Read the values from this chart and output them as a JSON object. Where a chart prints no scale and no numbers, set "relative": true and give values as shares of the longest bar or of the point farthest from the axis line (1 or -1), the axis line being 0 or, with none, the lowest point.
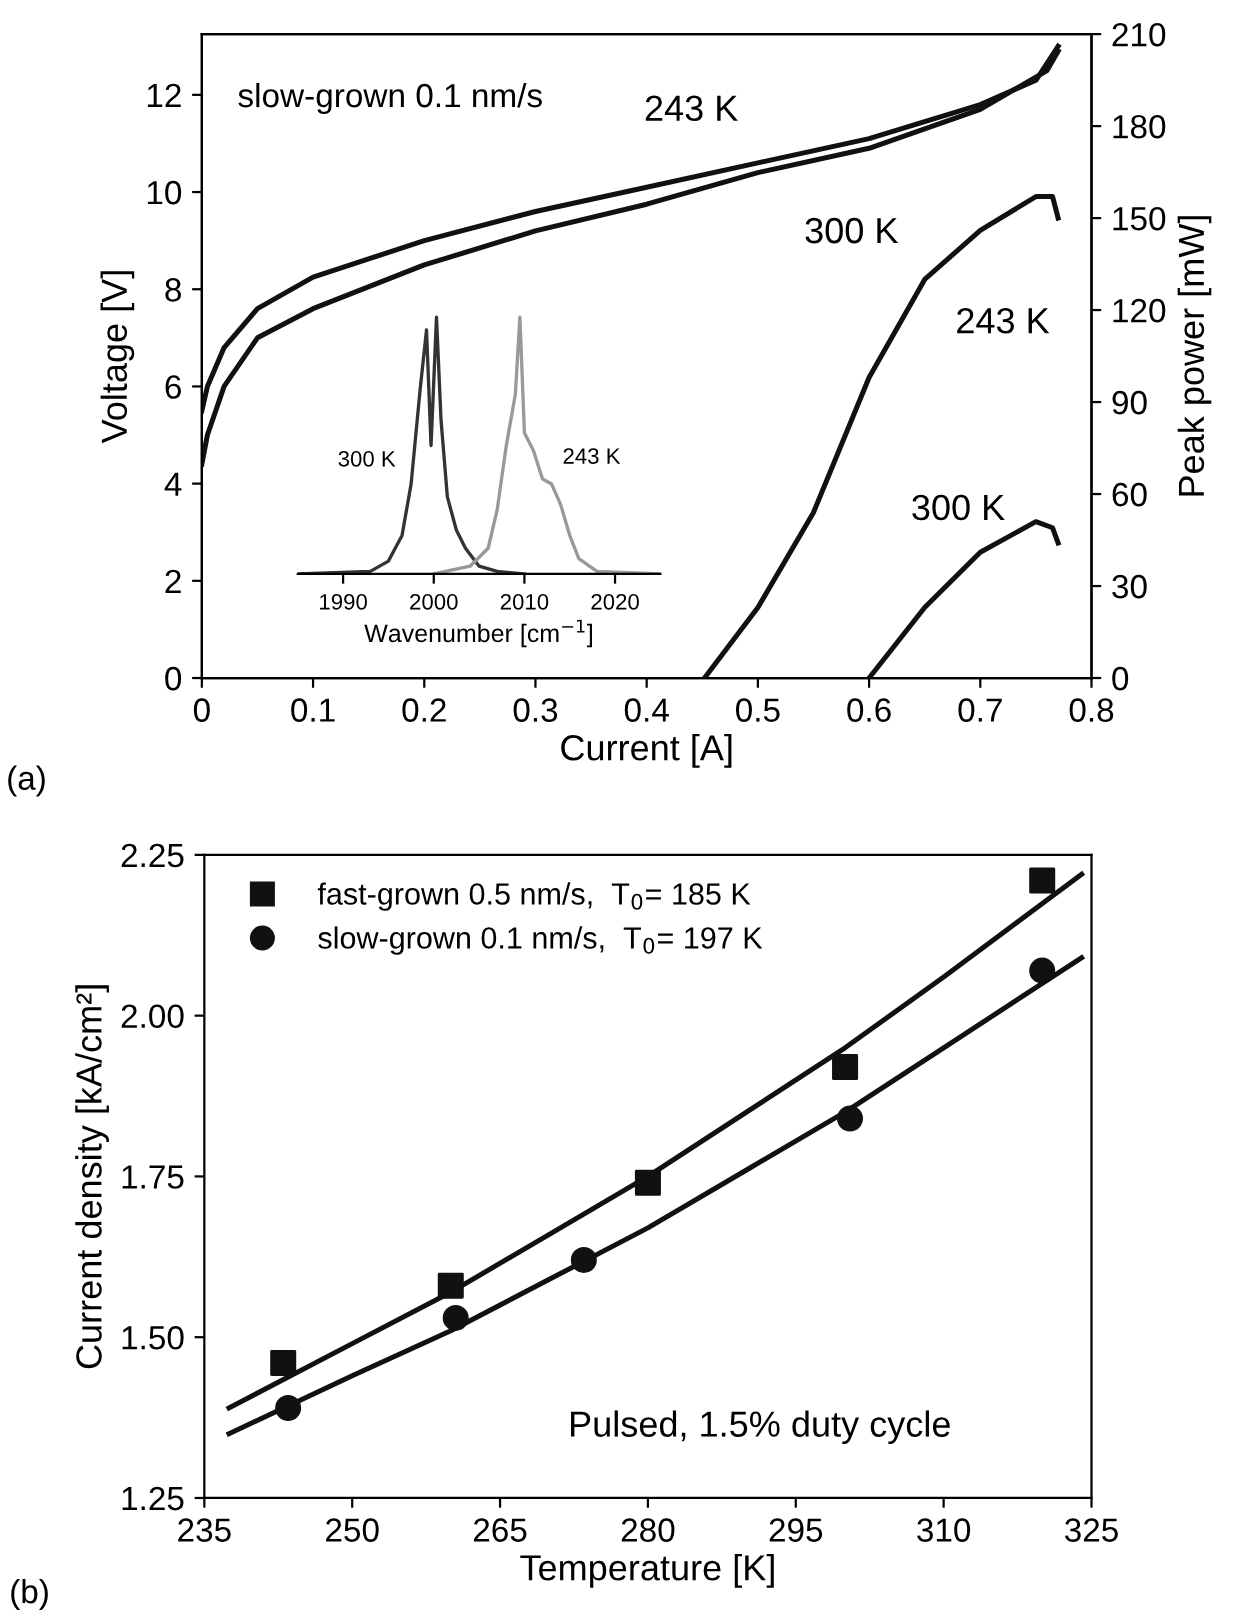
{
  "chart_data": [
    {
      "type": "line",
      "xlabel": "Current [A]",
      "ylabel": "Voltage [V]",
      "y2label": "Peak power [mW]",
      "xlim": [
        0,
        0.8
      ],
      "xticks": [
        0,
        0.1,
        0.2,
        0.3,
        0.4,
        0.5,
        0.6,
        0.7,
        0.8
      ],
      "ylim": [
        0,
        13.25
      ],
      "yticks": [
        0,
        2,
        4,
        6,
        8,
        10,
        12
      ],
      "y2lim": [
        0,
        210
      ],
      "y2ticks": [
        0,
        30,
        60,
        90,
        120,
        150,
        180,
        210
      ],
      "grid": false,
      "legend": false,
      "marker": "none",
      "line_style": "solid",
      "series": [
        {
          "name": "243 K",
          "color": "#111111",
          "x": [
            0,
            0.005,
            0.02,
            0.05,
            0.1,
            0.2,
            0.3,
            0.4,
            0.5,
            0.6,
            0.7,
            0.75,
            0.77
          ],
          "values": [
            5.5,
            6.0,
            6.8,
            7.6,
            8.25,
            9.0,
            9.6,
            10.1,
            10.6,
            11.1,
            11.8,
            12.3,
            13.0
          ]
        },
        {
          "name": "300 K",
          "color": "#111111",
          "x": [
            0,
            0.005,
            0.02,
            0.05,
            0.1,
            0.2,
            0.3,
            0.4,
            0.5,
            0.6,
            0.7,
            0.76,
            0.77
          ],
          "values": [
            4.4,
            5.0,
            6.0,
            7.0,
            7.6,
            8.5,
            9.2,
            9.75,
            10.4,
            10.9,
            11.7,
            12.5,
            12.9
          ]
        },
        {
          "name": "243 K",
          "color": "#111111",
          "axis": "y2",
          "x": [
            0.452,
            0.5,
            0.55,
            0.6,
            0.65,
            0.7,
            0.75,
            0.765,
            0.77
          ],
          "values": [
            0,
            23,
            54,
            98,
            130,
            146,
            157,
            157,
            150
          ]
        },
        {
          "name": "300 K",
          "color": "#111111",
          "axis": "y2",
          "x": [
            0.6,
            0.65,
            0.7,
            0.75,
            0.765,
            0.77
          ],
          "values": [
            0,
            23,
            41,
            51,
            49,
            44
          ]
        }
      ],
      "annotations": [
        "slow-grown 0.1 nm/s",
        "(a)"
      ]
    },
    {
      "type": "line",
      "relative": true,
      "xlabel": "Wavenumber [cm$^{−1}$]",
      "xlim": [
        1985,
        2025
      ],
      "xticks": [
        1990,
        2000,
        2010,
        2020
      ],
      "tick_labels": "x",
      "grid": false,
      "legend": false,
      "series": [
        {
          "name": "300 K",
          "color": "#333333",
          "x": [
            1985,
            1993,
            1995,
            1996.5,
            1997.5,
            1998.5,
            1999.2,
            1999.7,
            2000.3,
            2000.8,
            2001.5,
            2002.5,
            2003.5,
            2005,
            2007,
            2010
          ],
          "values": [
            0,
            0.01,
            0.05,
            0.15,
            0.35,
            0.72,
            0.95,
            0.5,
            1.0,
            0.6,
            0.3,
            0.17,
            0.1,
            0.03,
            0.01,
            0
          ]
        },
        {
          "name": "243 K",
          "color": "#999999",
          "x": [
            2000,
            2004,
            2006,
            2007,
            2008,
            2009,
            2009.5,
            2010,
            2011,
            2012,
            2013,
            2014,
            2015,
            2016,
            2018,
            2025
          ],
          "values": [
            0,
            0.03,
            0.1,
            0.25,
            0.5,
            0.7,
            1.0,
            0.55,
            0.48,
            0.37,
            0.35,
            0.27,
            0.15,
            0.06,
            0.01,
            0
          ]
        }
      ]
    },
    {
      "type": "scatter",
      "xlabel": "Temperature [K]",
      "ylabel": "Current density [kA/cm²]",
      "xlim": [
        235,
        325
      ],
      "xticks": [
        235,
        250,
        265,
        280,
        295,
        310,
        325
      ],
      "ylim": [
        1.25,
        2.25
      ],
      "yticks": [
        1.25,
        {
          "value": 1.5,
          "label": "1.50"
        },
        1.75,
        {
          "value": 2.0,
          "label": "2.00"
        },
        2.25
      ],
      "grid": false,
      "legend": "top left",
      "series": [
        {
          "name": "fast-grown 0.5 nm/s,  T$_{0}$= 185 K",
          "color": "#111111",
          "marker": "square",
          "x": [
            243,
            260,
            280,
            300,
            320
          ],
          "values": [
            1.46,
            1.58,
            1.74,
            1.92,
            2.21
          ]
        },
        {
          "name": "slow-grown 0.1 nm/s,  T$_{0}$= 197 K",
          "color": "#111111",
          "marker": "circle",
          "x": [
            243.5,
            260.5,
            273.5,
            300.5,
            320
          ],
          "values": [
            1.39,
            1.53,
            1.62,
            1.84,
            2.07
          ]
        },
        {
          "type": "line",
          "color": "#111111",
          "x": [
            237.5,
            250,
            260,
            270,
            280,
            290,
            300,
            310,
            324
          ],
          "values": [
            1.39,
            1.49,
            1.57,
            1.66,
            1.75,
            1.85,
            1.95,
            2.06,
            2.22
          ]
        },
        {
          "type": "line",
          "color": "#111111",
          "x": [
            237.5,
            250,
            260,
            270,
            280,
            290,
            300,
            310,
            324
          ],
          "values": [
            1.35,
            1.44,
            1.51,
            1.59,
            1.67,
            1.76,
            1.85,
            1.95,
            2.09
          ]
        }
      ],
      "annotations": [
        "Pulsed, 1.5% duty cycle",
        "(b)"
      ]
    }
  ]
}
